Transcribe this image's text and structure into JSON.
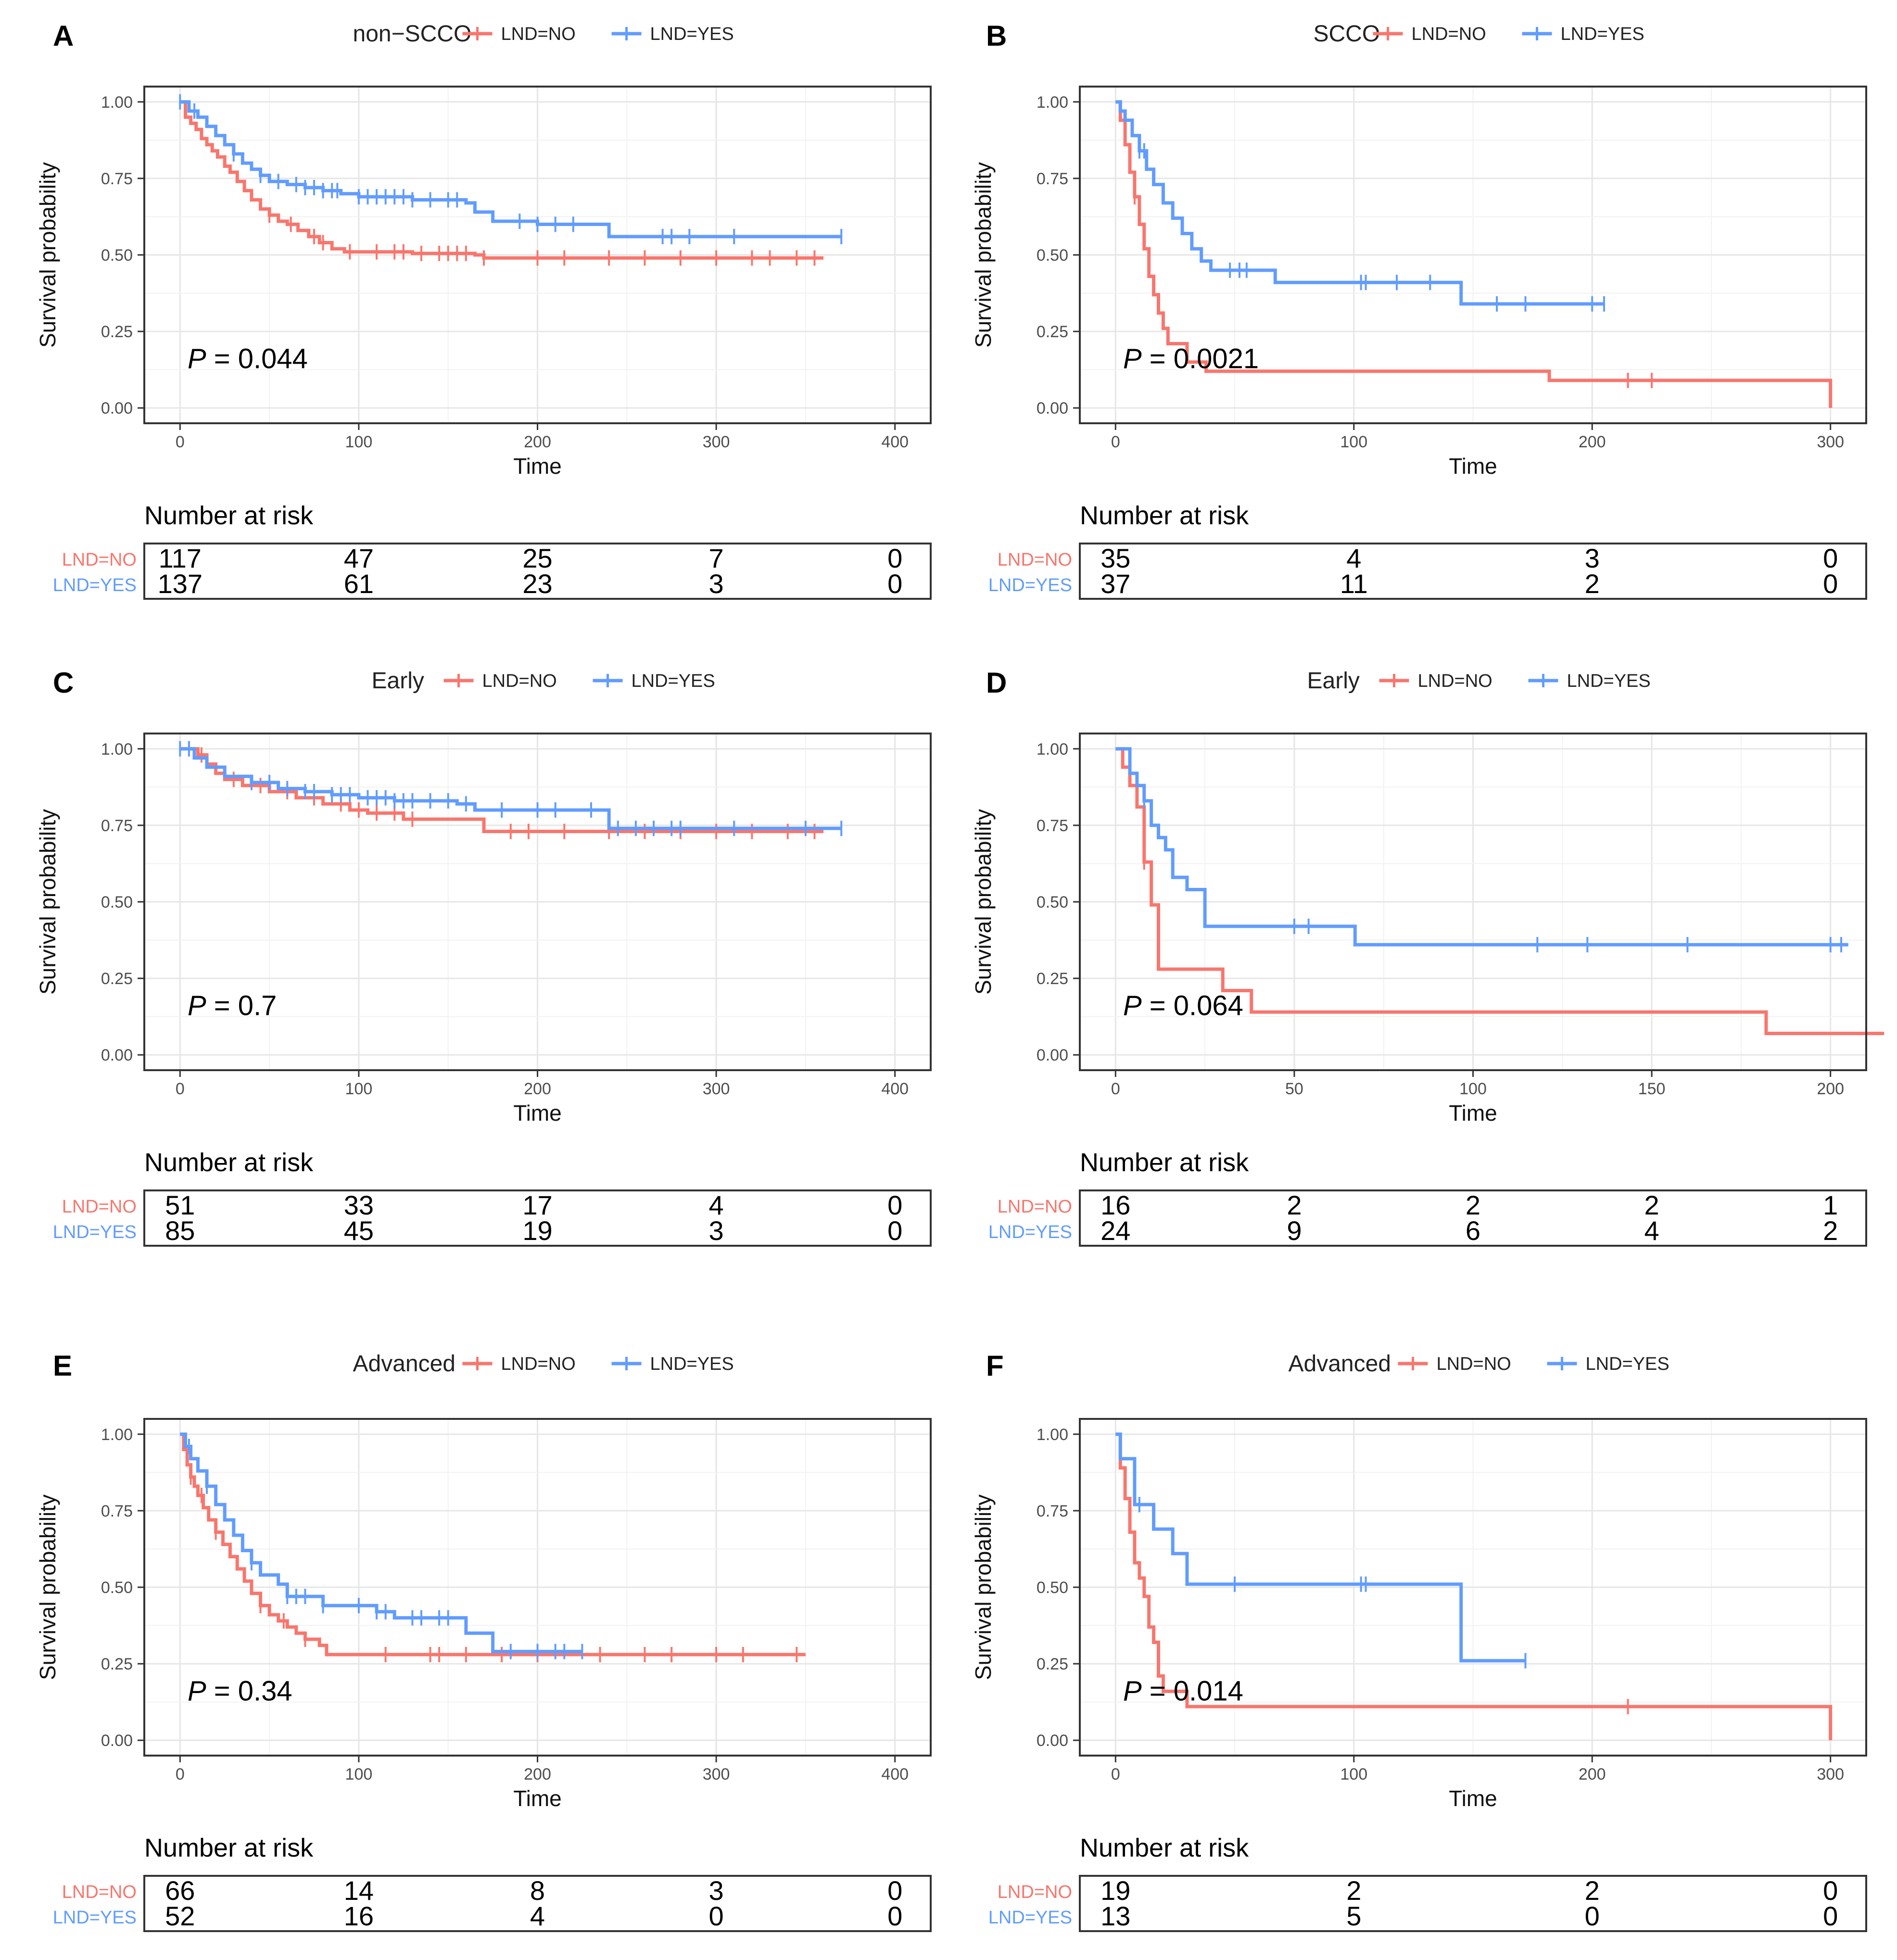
{
  "chart_data": [
    {
      "type": "line",
      "subtype": "kaplan-meier",
      "panel": "A",
      "title": "non−SCCO",
      "xlabel": "Time",
      "ylabel": "Survival probability",
      "xlim": [
        -20,
        420
      ],
      "ylim": [
        -0.05,
        1.05
      ],
      "xticks": [
        0,
        100,
        200,
        300,
        400
      ],
      "yticks": [
        0.0,
        0.25,
        0.5,
        0.75,
        1.0
      ],
      "ytick_labels": [
        "0.00",
        "0.25",
        "0.50",
        "0.75",
        "1.00"
      ],
      "pvalue": "= 0.044",
      "risk_title": "Number at risk",
      "series": [
        {
          "name": "LND=NO",
          "color": "#F8766D",
          "x": [
            0,
            3,
            6,
            9,
            12,
            15,
            18,
            21,
            25,
            28,
            32,
            36,
            40,
            45,
            50,
            55,
            60,
            66,
            72,
            78,
            85,
            92,
            100,
            130,
            165,
            170,
            175,
            360
          ],
          "y": [
            1.0,
            0.95,
            0.93,
            0.91,
            0.88,
            0.86,
            0.84,
            0.82,
            0.79,
            0.77,
            0.74,
            0.71,
            0.68,
            0.65,
            0.63,
            0.61,
            0.6,
            0.58,
            0.56,
            0.54,
            0.52,
            0.51,
            0.51,
            0.505,
            0.5,
            0.49,
            0.49,
            0.49
          ],
          "censor": [
            50,
            62,
            75,
            80,
            95,
            110,
            120,
            125,
            135,
            145,
            150,
            155,
            160,
            170,
            200,
            215,
            240,
            260,
            280,
            300,
            320,
            330,
            345,
            355
          ]
        },
        {
          "name": "LND=YES",
          "color": "#619CFF",
          "x": [
            0,
            5,
            10,
            15,
            20,
            25,
            30,
            35,
            40,
            45,
            50,
            60,
            70,
            80,
            90,
            100,
            130,
            160,
            165,
            175,
            200,
            235,
            240,
            370
          ],
          "y": [
            1.0,
            0.97,
            0.95,
            0.92,
            0.89,
            0.86,
            0.83,
            0.8,
            0.78,
            0.76,
            0.74,
            0.73,
            0.72,
            0.71,
            0.7,
            0.69,
            0.68,
            0.67,
            0.64,
            0.61,
            0.6,
            0.6,
            0.56,
            0.56
          ],
          "censor": [
            0,
            8,
            30,
            45,
            55,
            65,
            70,
            75,
            80,
            85,
            88,
            100,
            105,
            110,
            115,
            120,
            125,
            130,
            140,
            150,
            155,
            190,
            200,
            210,
            220,
            270,
            275,
            285,
            310,
            370
          ]
        }
      ],
      "risk_table": {
        "times": [
          0,
          100,
          200,
          300,
          400
        ],
        "rows": [
          {
            "label": "LND=NO",
            "values": [
              "117",
              "47",
              "25",
              "7",
              "0"
            ]
          },
          {
            "label": "LND=YES",
            "values": [
              "137",
              "61",
              "23",
              "3",
              "0"
            ]
          }
        ]
      }
    },
    {
      "type": "line",
      "subtype": "kaplan-meier",
      "panel": "B",
      "title": "SCCO",
      "xlabel": "Time",
      "ylabel": "Survival probability",
      "xlim": [
        -15,
        315
      ],
      "ylim": [
        -0.05,
        1.05
      ],
      "xticks": [
        0,
        100,
        200,
        300
      ],
      "yticks": [
        0.0,
        0.25,
        0.5,
        0.75,
        1.0
      ],
      "ytick_labels": [
        "0.00",
        "0.25",
        "0.50",
        "0.75",
        "1.00"
      ],
      "pvalue": "= 0.0021",
      "risk_title": "Number at risk",
      "series": [
        {
          "name": "LND=NO",
          "color": "#F8766D",
          "x": [
            0,
            2,
            4,
            6,
            8,
            10,
            12,
            14,
            16,
            18,
            20,
            22,
            26,
            30,
            38,
            60,
            182,
            300
          ],
          "y": [
            1.0,
            0.94,
            0.86,
            0.77,
            0.69,
            0.6,
            0.52,
            0.43,
            0.37,
            0.31,
            0.26,
            0.21,
            0.21,
            0.15,
            0.12,
            0.12,
            0.09,
            0.0
          ],
          "censor": [
            8,
            215,
            225
          ]
        },
        {
          "name": "LND=YES",
          "color": "#619CFF",
          "x": [
            0,
            2,
            4,
            7,
            10,
            13,
            16,
            20,
            24,
            28,
            32,
            36,
            40,
            45,
            55,
            67,
            100,
            145,
            160,
            205
          ],
          "y": [
            1.0,
            0.97,
            0.94,
            0.89,
            0.84,
            0.78,
            0.73,
            0.67,
            0.62,
            0.57,
            0.52,
            0.48,
            0.45,
            0.45,
            0.45,
            0.41,
            0.41,
            0.34,
            0.34,
            0.34
          ],
          "censor": [
            10,
            12,
            48,
            52,
            55,
            103,
            105,
            118,
            132,
            160,
            172,
            200,
            205
          ]
        }
      ],
      "risk_table": {
        "times": [
          0,
          100,
          200,
          300
        ],
        "rows": [
          {
            "label": "LND=NO",
            "values": [
              "35",
              "4",
              "3",
              "0"
            ]
          },
          {
            "label": "LND=YES",
            "values": [
              "37",
              "11",
              "2",
              "0"
            ]
          }
        ]
      }
    },
    {
      "type": "line",
      "subtype": "kaplan-meier",
      "panel": "C",
      "title": "Early",
      "xlabel": "Time",
      "ylabel": "Survival probability",
      "xlim": [
        -20,
        420
      ],
      "ylim": [
        -0.05,
        1.05
      ],
      "xticks": [
        0,
        100,
        200,
        300,
        400
      ],
      "yticks": [
        0.0,
        0.25,
        0.5,
        0.75,
        1.0
      ],
      "ytick_labels": [
        "0.00",
        "0.25",
        "0.50",
        "0.75",
        "1.00"
      ],
      "pvalue": "= 0.7",
      "risk_title": "Number at risk",
      "series": [
        {
          "name": "LND=NO",
          "color": "#F8766D",
          "x": [
            0,
            10,
            15,
            20,
            25,
            35,
            50,
            65,
            80,
            95,
            105,
            125,
            170,
            190,
            360
          ],
          "y": [
            1.0,
            0.98,
            0.95,
            0.92,
            0.9,
            0.88,
            0.86,
            0.84,
            0.82,
            0.8,
            0.79,
            0.77,
            0.73,
            0.73,
            0.73
          ],
          "censor": [
            5,
            12,
            30,
            45,
            60,
            75,
            90,
            100,
            110,
            120,
            130,
            185,
            195,
            215,
            240,
            260,
            280,
            300,
            320,
            340,
            355
          ]
        },
        {
          "name": "LND=YES",
          "color": "#619CFF",
          "x": [
            0,
            8,
            15,
            25,
            40,
            55,
            70,
            85,
            100,
            120,
            155,
            165,
            235,
            240,
            370
          ],
          "y": [
            1.0,
            0.97,
            0.94,
            0.91,
            0.89,
            0.87,
            0.86,
            0.85,
            0.84,
            0.83,
            0.82,
            0.8,
            0.8,
            0.74,
            0.74
          ],
          "censor": [
            0,
            5,
            40,
            50,
            60,
            70,
            75,
            85,
            90,
            95,
            105,
            110,
            115,
            120,
            125,
            130,
            140,
            150,
            160,
            180,
            200,
            210,
            230,
            245,
            255,
            265,
            275,
            280,
            310,
            350,
            370
          ]
        }
      ],
      "risk_table": {
        "times": [
          0,
          100,
          200,
          300,
          400
        ],
        "rows": [
          {
            "label": "LND=NO",
            "values": [
              "51",
              "33",
              "17",
              "4",
              "0"
            ]
          },
          {
            "label": "LND=YES",
            "values": [
              "85",
              "45",
              "19",
              "3",
              "0"
            ]
          }
        ]
      }
    },
    {
      "type": "line",
      "subtype": "kaplan-meier",
      "panel": "D",
      "title": "Early",
      "xlabel": "Time",
      "ylabel": "Survival probability",
      "xlim": [
        -10,
        210
      ],
      "ylim": [
        -0.05,
        1.05
      ],
      "xticks": [
        0,
        50,
        100,
        150,
        200
      ],
      "yticks": [
        0.0,
        0.25,
        0.5,
        0.75,
        1.0
      ],
      "ytick_labels": [
        "0.00",
        "0.25",
        "0.50",
        "0.75",
        "1.00"
      ],
      "pvalue": "= 0.064",
      "risk_title": "Number at risk",
      "series": [
        {
          "name": "LND=NO",
          "color": "#F8766D",
          "x": [
            0,
            2,
            4,
            6,
            8,
            10,
            12,
            30,
            38,
            182,
            215
          ],
          "y": [
            1.0,
            0.94,
            0.88,
            0.81,
            0.63,
            0.49,
            0.28,
            0.21,
            0.14,
            0.07,
            0.07
          ],
          "censor": [
            8
          ]
        },
        {
          "name": "LND=YES",
          "color": "#619CFF",
          "x": [
            0,
            4,
            6,
            8,
            10,
            12,
            14,
            16,
            20,
            25,
            50,
            67,
            205
          ],
          "y": [
            1.0,
            0.92,
            0.88,
            0.83,
            0.75,
            0.71,
            0.67,
            0.58,
            0.54,
            0.42,
            0.42,
            0.36,
            0.36
          ],
          "censor": [
            8,
            50,
            54,
            118,
            132,
            160,
            200,
            203
          ]
        }
      ],
      "risk_table": {
        "times": [
          0,
          50,
          100,
          150,
          200
        ],
        "rows": [
          {
            "label": "LND=NO",
            "values": [
              "16",
              "2",
              "2",
              "2",
              "1"
            ]
          },
          {
            "label": "LND=YES",
            "values": [
              "24",
              "9",
              "6",
              "4",
              "2"
            ]
          }
        ]
      }
    },
    {
      "type": "line",
      "subtype": "kaplan-meier",
      "panel": "E",
      "title": "Advanced",
      "xlabel": "Time",
      "ylabel": "Survival probability",
      "xlim": [
        -20,
        420
      ],
      "ylim": [
        -0.05,
        1.05
      ],
      "xticks": [
        0,
        100,
        200,
        300,
        400
      ],
      "yticks": [
        0.0,
        0.25,
        0.5,
        0.75,
        1.0
      ],
      "ytick_labels": [
        "0.00",
        "0.25",
        "0.50",
        "0.75",
        "1.00"
      ],
      "pvalue": "= 0.34",
      "risk_title": "Number at risk",
      "series": [
        {
          "name": "LND=NO",
          "color": "#F8766D",
          "x": [
            0,
            2,
            4,
            6,
            8,
            10,
            13,
            16,
            20,
            24,
            28,
            32,
            36,
            40,
            45,
            50,
            55,
            60,
            65,
            70,
            78,
            82,
            350
          ],
          "y": [
            1.0,
            0.95,
            0.9,
            0.86,
            0.83,
            0.8,
            0.76,
            0.72,
            0.68,
            0.64,
            0.6,
            0.56,
            0.52,
            0.48,
            0.44,
            0.41,
            0.39,
            0.37,
            0.35,
            0.33,
            0.31,
            0.28,
            0.28
          ],
          "censor": [
            6,
            12,
            20,
            45,
            58,
            70,
            115,
            140,
            145,
            160,
            180,
            200,
            235,
            260,
            275,
            300,
            315,
            345
          ]
        },
        {
          "name": "LND=YES",
          "color": "#619CFF",
          "x": [
            0,
            3,
            6,
            10,
            15,
            20,
            25,
            30,
            35,
            40,
            45,
            55,
            60,
            80,
            110,
            120,
            160,
            175,
            225
          ],
          "y": [
            1.0,
            0.96,
            0.92,
            0.88,
            0.83,
            0.77,
            0.72,
            0.67,
            0.62,
            0.58,
            0.54,
            0.51,
            0.47,
            0.44,
            0.42,
            0.4,
            0.35,
            0.29,
            0.29
          ],
          "censor": [
            5,
            15,
            40,
            60,
            65,
            70,
            80,
            100,
            110,
            115,
            130,
            135,
            145,
            150,
            185,
            200,
            210,
            215,
            225
          ]
        }
      ],
      "risk_table": {
        "times": [
          0,
          100,
          200,
          300,
          400
        ],
        "rows": [
          {
            "label": "LND=NO",
            "values": [
              "66",
              "14",
              "8",
              "3",
              "0"
            ]
          },
          {
            "label": "LND=YES",
            "values": [
              "52",
              "16",
              "4",
              "0",
              "0"
            ]
          }
        ]
      }
    },
    {
      "type": "line",
      "subtype": "kaplan-meier",
      "panel": "F",
      "title": "Advanced",
      "xlabel": "Time",
      "ylabel": "Survival probability",
      "xlim": [
        -15,
        315
      ],
      "ylim": [
        -0.05,
        1.05
      ],
      "xticks": [
        0,
        100,
        200,
        300
      ],
      "yticks": [
        0.0,
        0.25,
        0.5,
        0.75,
        1.0
      ],
      "ytick_labels": [
        "0.00",
        "0.25",
        "0.50",
        "0.75",
        "1.00"
      ],
      "pvalue": "= 0.014",
      "risk_title": "Number at risk",
      "series": [
        {
          "name": "LND=NO",
          "color": "#F8766D",
          "x": [
            0,
            2,
            4,
            6,
            8,
            10,
            12,
            14,
            16,
            18,
            20,
            30,
            300
          ],
          "y": [
            1.0,
            0.89,
            0.79,
            0.68,
            0.58,
            0.53,
            0.47,
            0.37,
            0.32,
            0.21,
            0.16,
            0.11,
            0.0
          ],
          "censor": [
            215
          ]
        },
        {
          "name": "LND=YES",
          "color": "#619CFF",
          "x": [
            0,
            2,
            8,
            16,
            24,
            30,
            145,
            172
          ],
          "y": [
            1.0,
            0.92,
            0.77,
            0.69,
            0.61,
            0.51,
            0.26,
            0.26
          ],
          "censor": [
            10,
            50,
            103,
            105,
            172
          ]
        }
      ],
      "risk_table": {
        "times": [
          0,
          100,
          200,
          300
        ],
        "rows": [
          {
            "label": "LND=NO",
            "values": [
              "19",
              "2",
              "2",
              "0"
            ]
          },
          {
            "label": "LND=YES",
            "values": [
              "13",
              "5",
              "0",
              "0"
            ]
          }
        ]
      }
    }
  ]
}
